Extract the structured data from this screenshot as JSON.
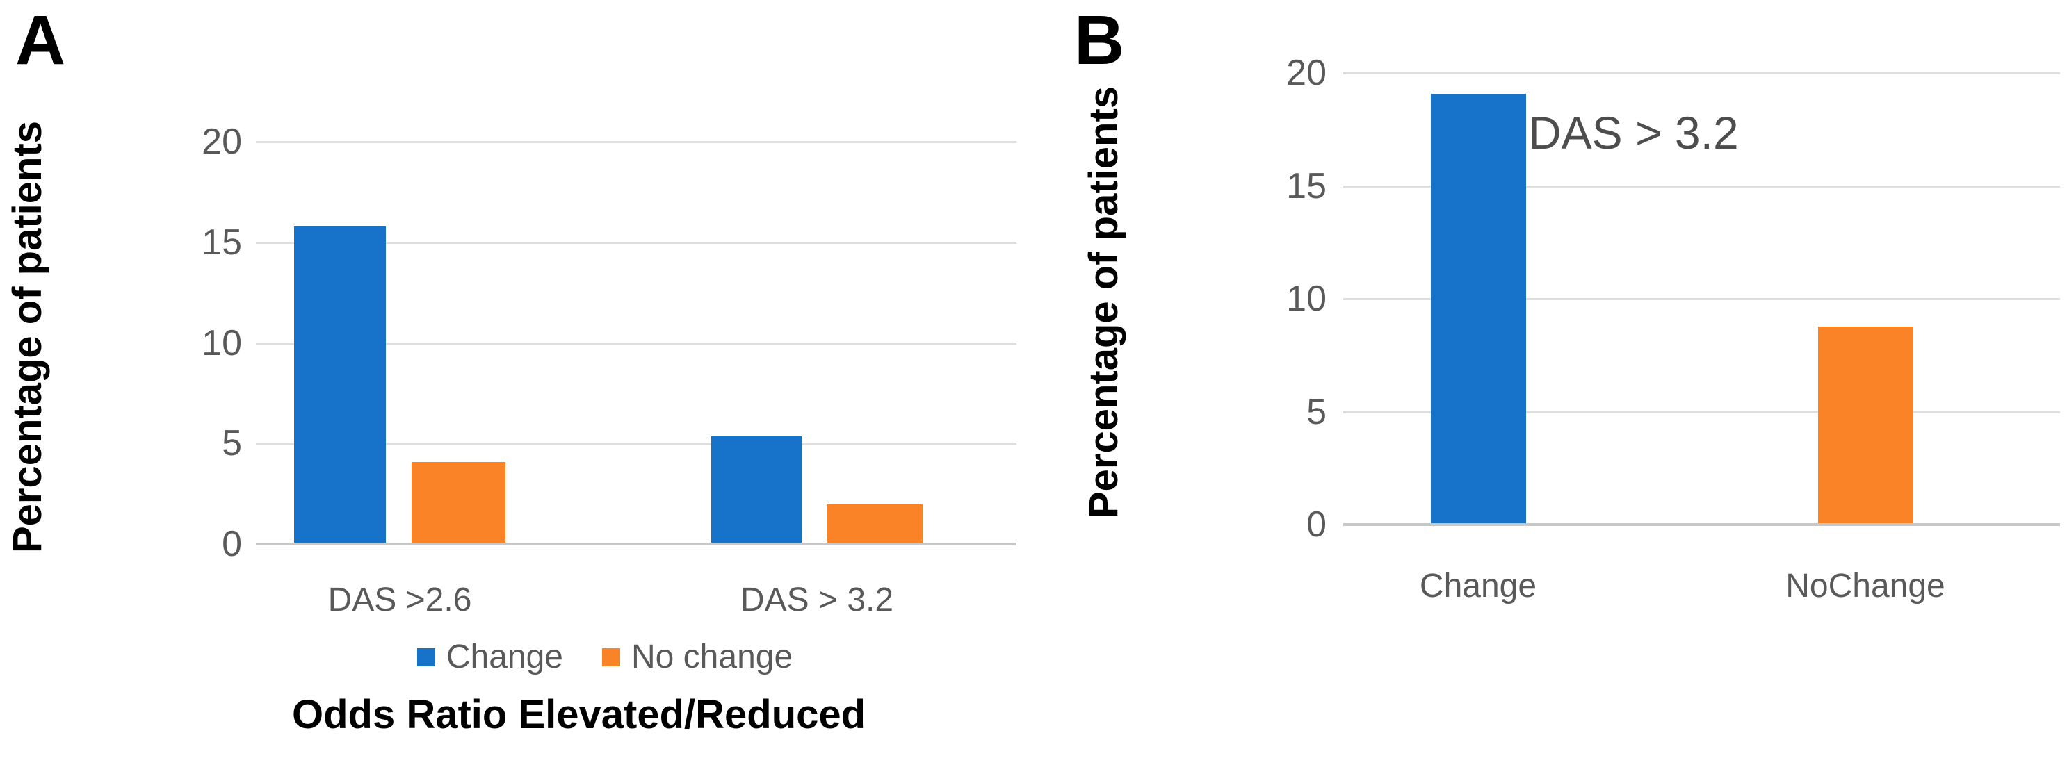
{
  "figure": {
    "background": "#FFFFFF"
  },
  "colors": {
    "series_blue": "#1773C9",
    "series_orange": "#FA8328",
    "gridline": "#DEDEDE",
    "axis_line": "#C8C8C8",
    "tick_text": "#595959",
    "category_text": "#595959",
    "annotation_text": "#4D4D4D",
    "title_text": "#000000"
  },
  "panels": [
    {
      "letter": "A"
    },
    {
      "letter": "B"
    }
  ],
  "chart_data": [
    {
      "type": "bar",
      "panel": "A",
      "title": "",
      "xlabel": "Odds Ratio Elevated/Reduced",
      "ylabel": "Percentage of patients",
      "categories": [
        "DAS >2.6",
        "DAS > 3.2"
      ],
      "series": [
        {
          "name": "Change",
          "color": "#1773C9",
          "values": [
            15.7,
            5.3
          ]
        },
        {
          "name": "No change",
          "color": "#FA8328",
          "values": [
            4.0,
            1.9
          ]
        }
      ],
      "ylim": [
        0,
        20
      ],
      "yticks": [
        0,
        5,
        10,
        15,
        20
      ],
      "grid": true,
      "legend_position": "bottom"
    },
    {
      "type": "bar",
      "panel": "B",
      "title": "",
      "xlabel": "",
      "ylabel": "Percentage of patients",
      "categories": [
        "Change",
        "NoChange"
      ],
      "values": [
        19.0,
        8.7
      ],
      "bar_colors": [
        "#1773C9",
        "#FA8328"
      ],
      "annotation": "DAS > 3.2",
      "ylim": [
        0,
        20
      ],
      "yticks": [
        0,
        5,
        10,
        15,
        20
      ],
      "grid": true,
      "legend_position": "none"
    }
  ]
}
